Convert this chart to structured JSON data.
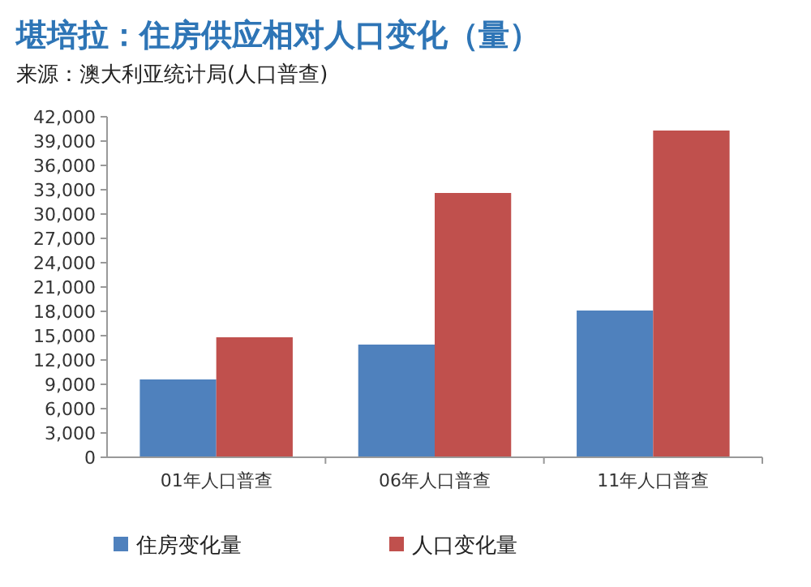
{
  "chart_data": {
    "type": "bar",
    "title": "堪培拉：住房供应相对人口变化（量）",
    "subtitle": "来源：澳大利亚统计局(人口普查)",
    "categories": [
      "01年人口普查",
      "06年人口普查",
      "11年人口普查"
    ],
    "series": [
      {
        "name": "住房变化量",
        "color": "#4f81bd",
        "values": [
          9600,
          13900,
          18100
        ]
      },
      {
        "name": "人口变化量",
        "color": "#c0504d",
        "values": [
          14800,
          32600,
          40300
        ]
      }
    ],
    "ylim": [
      0,
      42000
    ],
    "yticks": [
      {
        "value": 0,
        "label": "0"
      },
      {
        "value": 3000,
        "label": "3,000"
      },
      {
        "value": 6000,
        "label": "6,000"
      },
      {
        "value": 9000,
        "label": "9,000"
      },
      {
        "value": 12000,
        "label": "12,000"
      },
      {
        "value": 15000,
        "label": "15,000"
      },
      {
        "value": 18000,
        "label": "18,000"
      },
      {
        "value": 21000,
        "label": "21,000"
      },
      {
        "value": 24000,
        "label": "24,000"
      },
      {
        "value": 27000,
        "label": "27,000"
      },
      {
        "value": 30000,
        "label": "30,000"
      },
      {
        "value": 33000,
        "label": "33,000"
      },
      {
        "value": 36000,
        "label": "36,000"
      },
      {
        "value": 39000,
        "label": "39,000"
      },
      {
        "value": 42000,
        "label": "42,000"
      }
    ],
    "legend": "bottom"
  }
}
